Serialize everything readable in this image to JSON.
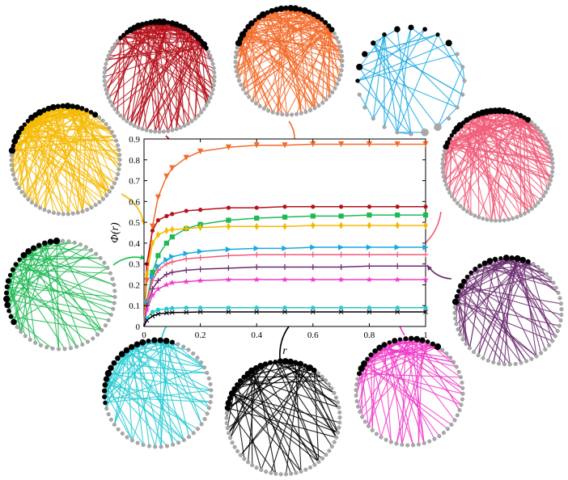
{
  "chart_data": {
    "type": "line",
    "xlabel": "r",
    "ylabel": "Φ(r)",
    "xlim": [
      0,
      1
    ],
    "ylim": [
      0,
      0.9
    ],
    "x_ticks": [
      "0",
      "0.2",
      "0.4",
      "0.6",
      "0.8",
      "1"
    ],
    "y_ticks": [
      "0",
      "0.1",
      "0.2",
      "0.3",
      "0.4",
      "0.5",
      "0.6",
      "0.7",
      "0.8",
      "0.9"
    ],
    "grid": false,
    "x": [
      0.01,
      0.03,
      0.05,
      0.08,
      0.1,
      0.15,
      0.2,
      0.3,
      0.4,
      0.5,
      0.6,
      0.7,
      0.8,
      0.9,
      1.0
    ],
    "series": [
      {
        "color": "#F26B2A",
        "marker": "triangle-down",
        "values": [
          0.22,
          0.48,
          0.62,
          0.72,
          0.76,
          0.81,
          0.84,
          0.86,
          0.87,
          0.87,
          0.875,
          0.875,
          0.875,
          0.875,
          0.875
        ]
      },
      {
        "color": "#B5121B",
        "marker": "circle",
        "values": [
          0.3,
          0.46,
          0.51,
          0.53,
          0.54,
          0.555,
          0.56,
          0.57,
          0.57,
          0.575,
          0.575,
          0.575,
          0.575,
          0.575,
          0.575
        ]
      },
      {
        "color": "#1DB954",
        "marker": "square",
        "values": [
          0.12,
          0.26,
          0.34,
          0.4,
          0.43,
          0.47,
          0.49,
          0.51,
          0.52,
          0.525,
          0.53,
          0.53,
          0.535,
          0.535,
          0.535
        ]
      },
      {
        "color": "#F5B800",
        "marker": "diamond",
        "values": [
          0.25,
          0.4,
          0.44,
          0.46,
          0.465,
          0.47,
          0.475,
          0.48,
          0.48,
          0.48,
          0.485,
          0.485,
          0.485,
          0.485,
          0.485
        ]
      },
      {
        "color": "#19A9E0",
        "marker": "triangle-right",
        "values": [
          0.12,
          0.24,
          0.29,
          0.32,
          0.335,
          0.35,
          0.36,
          0.37,
          0.375,
          0.375,
          0.38,
          0.38,
          0.38,
          0.38,
          0.38
        ]
      },
      {
        "color": "#F05A78",
        "marker": "plus",
        "values": [
          0.12,
          0.22,
          0.27,
          0.3,
          0.31,
          0.325,
          0.33,
          0.34,
          0.345,
          0.345,
          0.345,
          0.345,
          0.345,
          0.345,
          0.345
        ]
      },
      {
        "color": "#6B2C6E",
        "marker": "plus",
        "values": [
          0.1,
          0.18,
          0.22,
          0.25,
          0.26,
          0.27,
          0.275,
          0.28,
          0.285,
          0.285,
          0.285,
          0.285,
          0.29,
          0.29,
          0.29
        ]
      },
      {
        "color": "#F038C8",
        "marker": "star",
        "values": [
          0.08,
          0.15,
          0.18,
          0.2,
          0.21,
          0.215,
          0.22,
          0.225,
          0.225,
          0.225,
          0.225,
          0.225,
          0.225,
          0.225,
          0.225
        ]
      },
      {
        "color": "#22C9D0",
        "marker": "circle",
        "values": [
          0.04,
          0.07,
          0.08,
          0.085,
          0.088,
          0.09,
          0.09,
          0.09,
          0.09,
          0.09,
          0.09,
          0.09,
          0.09,
          0.09,
          0.09
        ]
      },
      {
        "color": "#000000",
        "marker": "x",
        "values": [
          0.03,
          0.05,
          0.06,
          0.065,
          0.067,
          0.068,
          0.07,
          0.07,
          0.07,
          0.07,
          0.07,
          0.07,
          0.07,
          0.07,
          0.07
        ]
      }
    ]
  },
  "networks": [
    {
      "color": "#B5121B",
      "density": "dense"
    },
    {
      "color": "#F26B2A",
      "density": "dense"
    },
    {
      "color": "#19A9E0",
      "density": "sparse"
    },
    {
      "color": "#F05A78",
      "density": "dense"
    },
    {
      "color": "#6B2C6E",
      "density": "medium"
    },
    {
      "color": "#F038C8",
      "density": "medium"
    },
    {
      "color": "#000000",
      "density": "medium"
    },
    {
      "color": "#22C9D0",
      "density": "medium"
    },
    {
      "color": "#1DB954",
      "density": "medium"
    },
    {
      "color": "#F5B800",
      "density": "dense"
    }
  ]
}
